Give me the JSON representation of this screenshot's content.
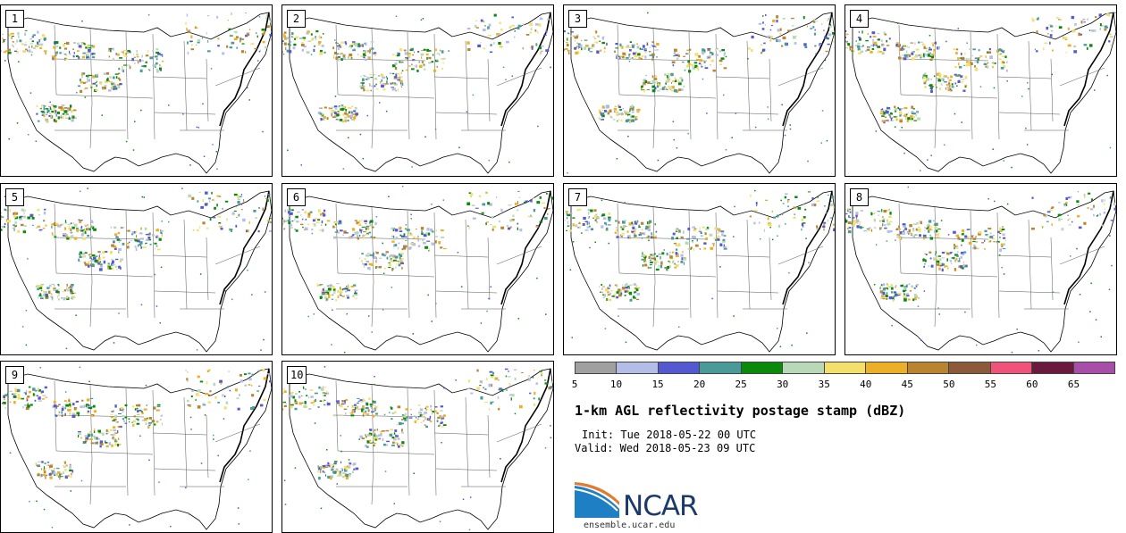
{
  "panels": [
    {
      "label": "1",
      "seed": 11
    },
    {
      "label": "2",
      "seed": 23
    },
    {
      "label": "3",
      "seed": 37
    },
    {
      "label": "4",
      "seed": 41
    },
    {
      "label": "5",
      "seed": 53
    },
    {
      "label": "6",
      "seed": 67
    },
    {
      "label": "7",
      "seed": 71
    },
    {
      "label": "8",
      "seed": 89
    },
    {
      "label": "9",
      "seed": 97
    },
    {
      "label": "10",
      "seed": 103
    }
  ],
  "colorbar": {
    "ticks": [
      "5",
      "10",
      "15",
      "20",
      "25",
      "30",
      "35",
      "40",
      "45",
      "50",
      "55",
      "60",
      "65"
    ],
    "colors": [
      "#a0a0a0",
      "#b4bde8",
      "#5459d3",
      "#4a9a9a",
      "#0a8a0a",
      "#b9d8b7",
      "#f2e06b",
      "#ebb027",
      "#b8842f",
      "#8a5a3a",
      "#f0527a",
      "#6a1a3c",
      "#a64ea8"
    ]
  },
  "title": "1-km AGL reflectivity postage stamp (dBZ)",
  "init_label": "Init:",
  "init_value": "Tue 2018-05-22 00 UTC",
  "valid_label": "Valid:",
  "valid_value": "Wed 2018-05-23 09 UTC",
  "logo": {
    "name": "NCAR",
    "url": "ensemble.ucar.edu"
  }
}
